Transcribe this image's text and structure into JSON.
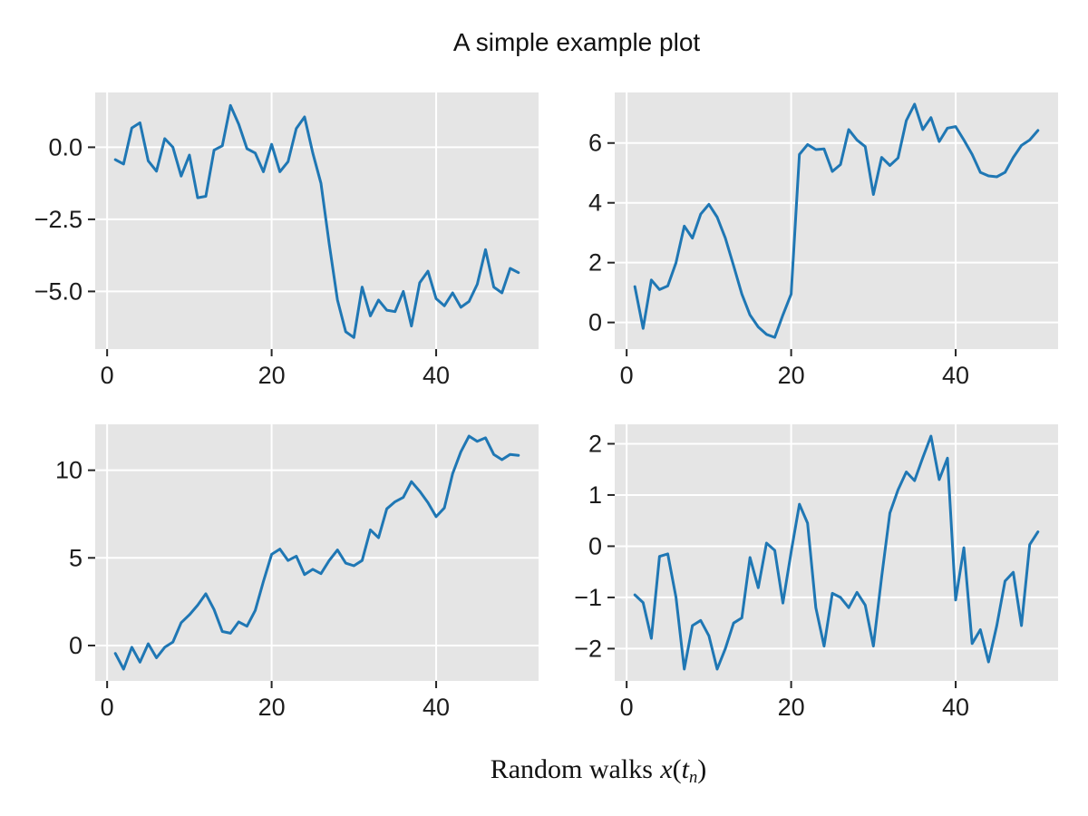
{
  "figure": {
    "title": "A simple example plot",
    "xlabel": {
      "text_prefix": "Random walks",
      "math_var": "x",
      "open_paren": "(",
      "math_arg": "t",
      "subscript": "n",
      "close_paren": ")"
    }
  },
  "style": {
    "line_color": "#1f77b4",
    "plot_bg": "#e5e5e5",
    "grid_color": "#ffffff",
    "tick_color": "#262626",
    "label_color": "#1c1c1c",
    "figure_bg": "#ffffff"
  },
  "chart_data": [
    {
      "id": "top-left",
      "type": "line",
      "title": "",
      "xlabel": "",
      "ylabel": "",
      "grid": true,
      "legend": null,
      "x_start": 1,
      "x_end": 50,
      "xlim": [
        -1.45,
        52.45
      ],
      "ylim": [
        -7.0,
        1.9
      ],
      "xtick_values": [
        0,
        20,
        40
      ],
      "xtick_labels": [
        "0",
        "20",
        "40"
      ],
      "ytick_values": [
        0,
        -2.5,
        -5.0
      ],
      "ytick_labels": [
        "0.0",
        "−2.5",
        "−5.0"
      ],
      "values": [
        -0.43,
        -0.58,
        0.67,
        0.85,
        -0.47,
        -0.83,
        0.3,
        0.0,
        -1.0,
        -0.27,
        -1.75,
        -1.7,
        -0.1,
        0.05,
        1.45,
        0.8,
        -0.05,
        -0.2,
        -0.85,
        0.1,
        -0.85,
        -0.5,
        0.65,
        1.05,
        -0.2,
        -1.25,
        -3.35,
        -5.3,
        -6.4,
        -6.6,
        -4.85,
        -5.85,
        -5.3,
        -5.65,
        -5.7,
        -5.0,
        -6.2,
        -4.7,
        -4.3,
        -5.25,
        -5.5,
        -5.05,
        -5.55,
        -5.35,
        -4.75,
        -3.55,
        -4.85,
        -5.05,
        -4.2,
        -4.35
      ]
    },
    {
      "id": "top-right",
      "type": "line",
      "title": "",
      "xlabel": "",
      "ylabel": "",
      "grid": true,
      "legend": null,
      "x_start": 1,
      "x_end": 50,
      "xlim": [
        -1.45,
        52.45
      ],
      "ylim": [
        -0.89,
        7.69
      ],
      "xtick_values": [
        0,
        20,
        40
      ],
      "xtick_labels": [
        "0",
        "20",
        "40"
      ],
      "ytick_values": [
        6,
        4,
        2,
        0
      ],
      "ytick_labels": [
        "6",
        "4",
        "2",
        "0"
      ],
      "values": [
        1.2,
        -0.2,
        1.42,
        1.1,
        1.22,
        2.0,
        3.22,
        2.82,
        3.62,
        3.95,
        3.52,
        2.82,
        1.9,
        0.95,
        0.25,
        -0.15,
        -0.4,
        -0.5,
        0.25,
        0.95,
        5.62,
        5.95,
        5.78,
        5.8,
        5.05,
        5.28,
        6.45,
        6.1,
        5.88,
        4.28,
        5.52,
        5.25,
        5.5,
        6.75,
        7.3,
        6.45,
        6.85,
        6.05,
        6.5,
        6.55,
        6.1,
        5.62,
        5.02,
        4.9,
        4.87,
        5.02,
        5.52,
        5.92,
        6.1,
        6.42
      ]
    },
    {
      "id": "bottom-left",
      "type": "line",
      "title": "",
      "xlabel": "",
      "ylabel": "",
      "grid": true,
      "legend": null,
      "x_start": 1,
      "x_end": 50,
      "xlim": [
        -1.45,
        52.45
      ],
      "ylim": [
        -2.02,
        12.62
      ],
      "xtick_values": [
        0,
        20,
        40
      ],
      "xtick_labels": [
        "0",
        "20",
        "40"
      ],
      "ytick_values": [
        10,
        5,
        0
      ],
      "ytick_labels": [
        "10",
        "5",
        "0"
      ],
      "values": [
        -0.45,
        -1.35,
        -0.1,
        -0.95,
        0.1,
        -0.7,
        -0.1,
        0.2,
        1.3,
        1.75,
        2.3,
        2.95,
        2.05,
        0.8,
        0.7,
        1.35,
        1.1,
        2.0,
        3.65,
        5.2,
        5.5,
        4.85,
        5.1,
        4.05,
        4.35,
        4.1,
        4.85,
        5.45,
        4.7,
        4.55,
        4.85,
        6.6,
        6.15,
        7.8,
        8.2,
        8.45,
        9.35,
        8.8,
        8.15,
        7.35,
        7.85,
        9.8,
        11.05,
        11.95,
        11.65,
        11.85,
        10.9,
        10.6,
        10.9,
        10.85
      ]
    },
    {
      "id": "bottom-right",
      "type": "line",
      "title": "",
      "xlabel": "",
      "ylabel": "",
      "grid": true,
      "legend": null,
      "x_start": 1,
      "x_end": 50,
      "xlim": [
        -1.45,
        52.45
      ],
      "ylim": [
        -2.63,
        2.38
      ],
      "xtick_values": [
        0,
        20,
        40
      ],
      "xtick_labels": [
        "0",
        "20",
        "40"
      ],
      "ytick_values": [
        2,
        1,
        0,
        -1,
        -2
      ],
      "ytick_labels": [
        "2",
        "1",
        "0",
        "−1",
        "−2"
      ],
      "values": [
        -0.95,
        -1.1,
        -1.8,
        -0.2,
        -0.15,
        -1.0,
        -2.4,
        -1.55,
        -1.45,
        -1.75,
        -2.4,
        -2.0,
        -1.5,
        -1.4,
        -0.22,
        -0.81,
        0.06,
        -0.08,
        -1.11,
        -0.11,
        0.82,
        0.45,
        -1.2,
        -1.95,
        -0.92,
        -1.0,
        -1.2,
        -0.9,
        -1.15,
        -1.95,
        -0.6,
        0.65,
        1.1,
        1.45,
        1.28,
        1.73,
        2.15,
        1.3,
        1.72,
        -1.05,
        -0.03,
        -1.9,
        -1.63,
        -2.26,
        -1.55,
        -0.68,
        -0.51,
        -1.55,
        0.03,
        0.28
      ]
    }
  ]
}
